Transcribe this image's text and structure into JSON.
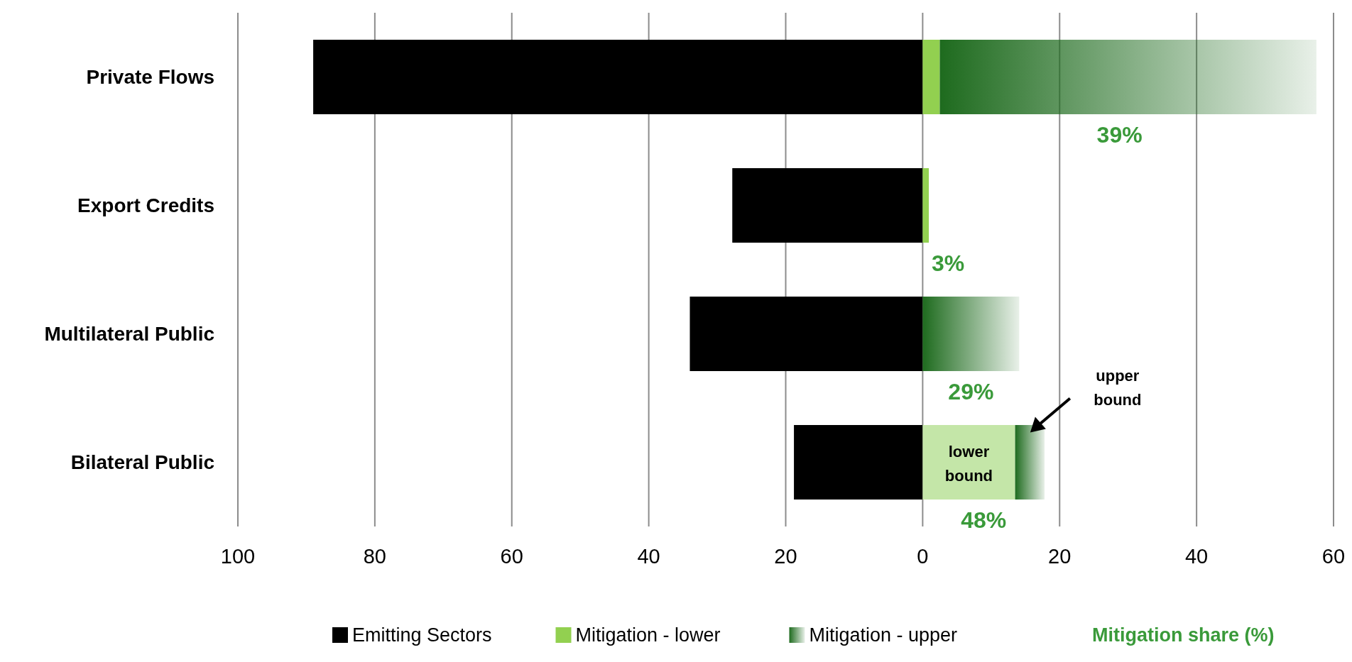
{
  "chart_data": {
    "type": "bar",
    "orientation": "horizontal",
    "stacked": true,
    "categories": [
      "Private Flows",
      "Export Credits",
      "Multilateral Public",
      "Bilateral Public"
    ],
    "series": [
      {
        "name": "Emitting  Sectors",
        "color": "#000000",
        "values": [
          -89,
          -27.8,
          -34,
          -18.8
        ]
      },
      {
        "name": "Mitigation - lower",
        "color": "#92d050",
        "colors": [
          "#92d050",
          "#92d050",
          "#92d050",
          "#c4e6a8"
        ],
        "values": [
          2.5,
          0.9,
          0,
          13.5
        ]
      },
      {
        "name": "Mitigation - upper",
        "color": "#1e6b1e",
        "values": [
          55,
          0,
          14.1,
          4.3
        ]
      }
    ],
    "xlim": [
      -100,
      60
    ],
    "xticks": [
      {
        "value": -100,
        "label": "100"
      },
      {
        "value": -80,
        "label": "80"
      },
      {
        "value": -60,
        "label": "60"
      },
      {
        "value": -40,
        "label": "40"
      },
      {
        "value": -20,
        "label": "20"
      },
      0,
      20,
      40,
      60
    ],
    "grid": "x",
    "legend": "bottom",
    "annotations": [
      "39%",
      "3%",
      "29%",
      "48%",
      "lower bound",
      "upper bound",
      "Mitigation share (%)"
    ]
  }
}
